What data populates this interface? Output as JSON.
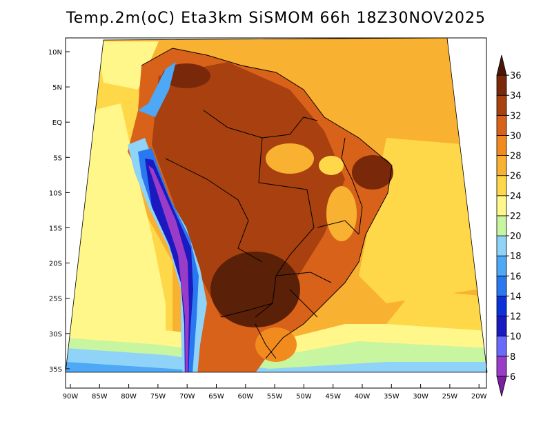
{
  "title": "Temp.2m(oC) Eta3km SiSMOM 66h 18Z30NOV2025",
  "lat_labels": [
    "10N",
    "5N",
    "EQ",
    "5S",
    "10S",
    "15S",
    "20S",
    "25S",
    "30S",
    "35S"
  ],
  "lon_labels": [
    "90W",
    "85W",
    "80W",
    "75W",
    "70W",
    "65W",
    "60W",
    "55W",
    "50W",
    "45W",
    "40W",
    "35W",
    "30W",
    "25W",
    "20W"
  ],
  "colorbar": {
    "labels": [
      "6",
      "8",
      "10",
      "12",
      "14",
      "16",
      "18",
      "20",
      "22",
      "24",
      "26",
      "28",
      "30",
      "32",
      "34",
      "36"
    ],
    "colors": [
      "#7a1fa2",
      "#9b3cc8",
      "#6a6aff",
      "#1a1ac0",
      "#0a32d8",
      "#2a78f0",
      "#4ea8f5",
      "#8fd3f8",
      "#c8f5a0",
      "#fff78a",
      "#ffd84a",
      "#f8b130",
      "#f28b1e",
      "#d8621a",
      "#a8400f",
      "#7a280a",
      "#4a1706"
    ]
  },
  "legend_icons": {
    "up": "triangle-up-icon",
    "down": "triangle-down-icon"
  }
}
